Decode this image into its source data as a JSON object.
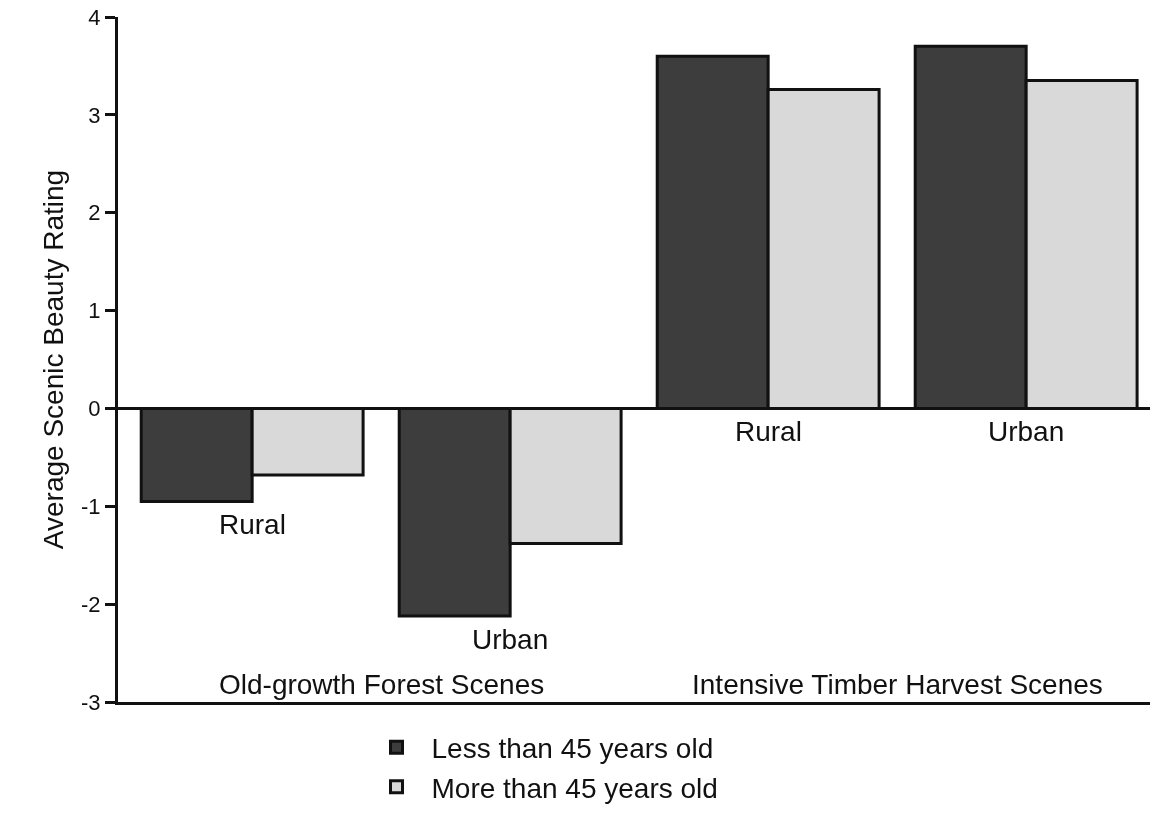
{
  "chart_data": {
    "type": "bar",
    "ylabel": "Average Scenic Beauty Rating",
    "categories": [
      "Rural",
      "Urban",
      "Rural",
      "Urban"
    ],
    "series": [
      {
        "name": "Less than 45 years old",
        "color": "#3d3d3d",
        "values": [
          -0.95,
          -2.12,
          3.6,
          3.7
        ]
      },
      {
        "name": "More than 45 years old",
        "color": "#d9d9d9",
        "values": [
          -0.68,
          -1.38,
          3.26,
          3.35
        ]
      }
    ],
    "annotations": [
      "Old-growth Forest Scenes",
      "Intensive Timber Harvest Scenes"
    ],
    "ylim": [
      -3,
      4
    ],
    "yticks": [
      -3,
      -2,
      -1,
      0,
      1,
      2,
      3,
      4
    ],
    "ref_lines": [
      {
        "axis": "y",
        "value": 0
      }
    ],
    "grid": false,
    "legend": "bottom"
  }
}
